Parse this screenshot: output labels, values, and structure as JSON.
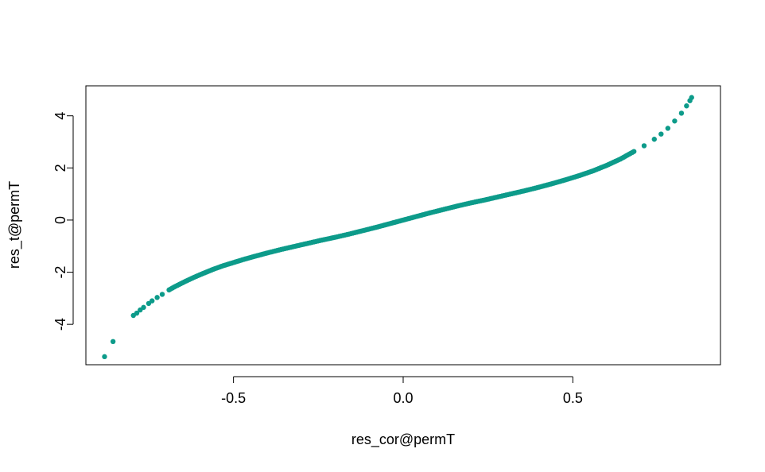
{
  "chart_data": {
    "type": "scatter",
    "xlabel": "res_cor@permT",
    "ylabel": "res_t@permT",
    "xlim": [
      -0.935,
      0.935
    ],
    "ylim": [
      -5.55,
      5.15
    ],
    "x_ticks": [
      -0.5,
      0.0,
      0.5
    ],
    "x_tick_labels": [
      "-0.5",
      "0.0",
      "0.5"
    ],
    "y_ticks": [
      -4,
      -2,
      0,
      2,
      4
    ],
    "y_tick_labels": [
      "-4",
      "-2",
      "0",
      "2",
      "4"
    ],
    "grid": false,
    "legend": "none",
    "point_color": "#0D9B8A",
    "series": [
      {
        "points": [
          [
            -0.88,
            -5.24
          ],
          [
            -0.855,
            -4.66
          ],
          [
            -0.795,
            -3.66
          ],
          [
            -0.785,
            -3.57
          ],
          [
            -0.775,
            -3.45
          ],
          [
            -0.765,
            -3.35
          ],
          [
            -0.75,
            -3.2
          ],
          [
            -0.74,
            -3.1
          ],
          [
            -0.725,
            -2.97
          ],
          [
            -0.71,
            -2.85
          ],
          [
            -0.69,
            -2.68
          ],
          [
            -0.675,
            -2.57
          ],
          [
            -0.66,
            -2.47
          ],
          [
            -0.64,
            -2.34
          ],
          [
            -0.61,
            -2.16
          ],
          [
            -0.59,
            -2.05
          ],
          [
            -0.56,
            -1.89
          ],
          [
            -0.53,
            -1.75
          ],
          [
            -0.5,
            -1.63
          ],
          [
            -0.47,
            -1.51
          ],
          [
            -0.44,
            -1.4
          ],
          [
            -0.4,
            -1.26
          ],
          [
            -0.36,
            -1.13
          ],
          [
            -0.32,
            -1.01
          ],
          [
            -0.28,
            -0.89
          ],
          [
            -0.24,
            -0.77
          ],
          [
            -0.2,
            -0.66
          ],
          [
            -0.16,
            -0.54
          ],
          [
            -0.12,
            -0.41
          ],
          [
            -0.08,
            -0.28
          ],
          [
            -0.04,
            -0.14
          ],
          [
            0.0,
            0.0
          ],
          [
            0.04,
            0.14
          ],
          [
            0.08,
            0.28
          ],
          [
            0.12,
            0.41
          ],
          [
            0.16,
            0.54
          ],
          [
            0.2,
            0.66
          ],
          [
            0.24,
            0.77
          ],
          [
            0.28,
            0.89
          ],
          [
            0.32,
            1.01
          ],
          [
            0.36,
            1.13
          ],
          [
            0.4,
            1.26
          ],
          [
            0.44,
            1.4
          ],
          [
            0.48,
            1.55
          ],
          [
            0.52,
            1.71
          ],
          [
            0.56,
            1.89
          ],
          [
            0.6,
            2.1
          ],
          [
            0.64,
            2.34
          ],
          [
            0.68,
            2.63
          ],
          [
            0.71,
            2.85
          ],
          [
            0.74,
            3.1
          ],
          [
            0.76,
            3.3
          ],
          [
            0.78,
            3.52
          ],
          [
            0.8,
            3.8
          ],
          [
            0.82,
            4.1
          ],
          [
            0.835,
            4.38
          ],
          [
            0.845,
            4.58
          ],
          [
            0.85,
            4.7
          ]
        ]
      }
    ]
  }
}
